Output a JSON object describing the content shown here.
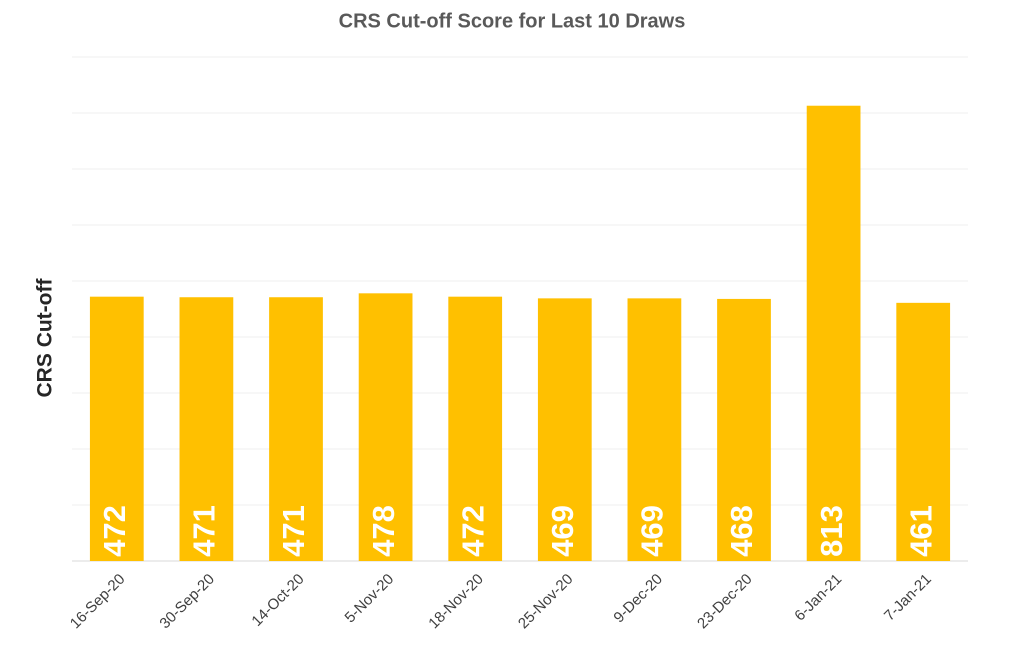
{
  "chart_data": {
    "type": "bar",
    "title": "CRS Cut-off Score for Last 10 Draws",
    "y_label": "CRS Cut-off",
    "categories": [
      "16-Sep-20",
      "30-Sep-20",
      "14-Oct-20",
      "5-Nov-20",
      "18-Nov-20",
      "25-Nov-20",
      "9-Dec-20",
      "23-Dec-20",
      "6-Jan-21",
      "7-Jan-21"
    ],
    "values": [
      472,
      471,
      471,
      478,
      472,
      469,
      469,
      468,
      813,
      461
    ],
    "color": "#ffc000",
    "ylim": [
      0,
      900
    ],
    "yticks": [
      0,
      100,
      200,
      300,
      400,
      500,
      600,
      700,
      800,
      900
    ],
    "grid": true
  }
}
